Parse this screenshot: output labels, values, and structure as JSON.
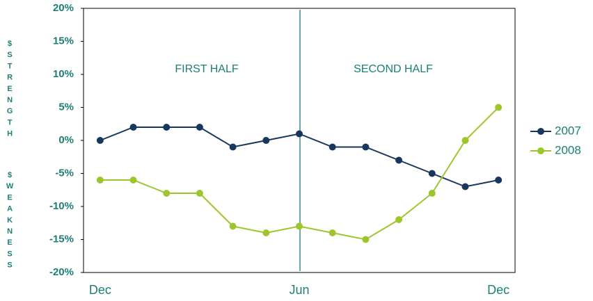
{
  "chart_data": {
    "type": "line",
    "y_label_parts": [
      "$STRENGTH",
      "$WEAKNESS"
    ],
    "annotations": [
      "FIRST HALF",
      "SECOND HALF"
    ],
    "categories": [
      "Dec",
      null,
      null,
      null,
      null,
      null,
      "Jun",
      null,
      null,
      null,
      null,
      null,
      "Dec"
    ],
    "series": [
      {
        "name": "2007",
        "color": "#17375e",
        "values": [
          0,
          2,
          2,
          2,
          -1,
          0,
          1,
          -1,
          -1,
          -3,
          -5,
          -7,
          -6
        ]
      },
      {
        "name": "2008",
        "color": "#9dc62d",
        "values": [
          -6,
          -6,
          -8,
          -8,
          -13,
          -14,
          -13,
          -14,
          -15,
          -12,
          -8,
          0,
          5
        ]
      }
    ],
    "ylim": [
      -20,
      20
    ],
    "yticks": [
      {
        "value": -20,
        "label": "-20%"
      },
      {
        "value": -15,
        "label": "-15%"
      },
      {
        "value": -10,
        "label": "-10%"
      },
      {
        "value": -5,
        "label": "-5%"
      },
      {
        "value": 0,
        "label": "0%"
      },
      {
        "value": 5,
        "label": "5%"
      },
      {
        "value": 10,
        "label": "10%"
      },
      {
        "value": 15,
        "label": "15%"
      },
      {
        "value": 20,
        "label": "20%"
      }
    ],
    "legend": "right"
  }
}
